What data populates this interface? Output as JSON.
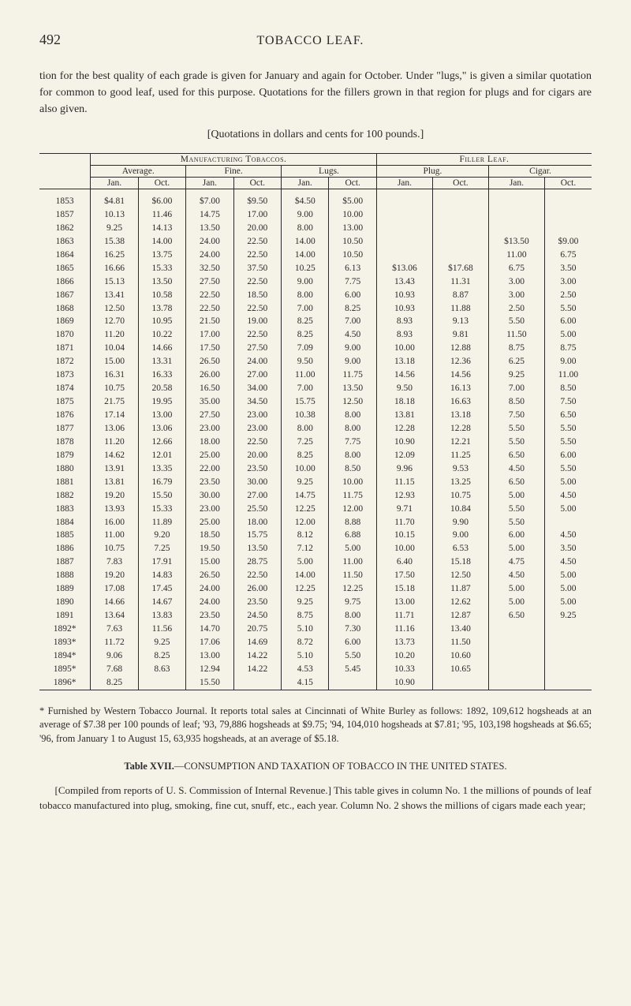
{
  "header": {
    "page_number": "492",
    "page_title": "TOBACCO LEAF."
  },
  "intro": "tion for the best quality of each grade is given for January and again for October. Under \"lugs,\" is given a similar quotation for common to good leaf, used for this purpose. Quotations for the fillers grown in that region for plugs and for cigars are also given.",
  "quotations_note": "[Quotations in dollars and cents for 100 pounds.]",
  "table": {
    "top_headers": {
      "mfg": "Manufacturing Tobaccos.",
      "filler": "Filler Leaf."
    },
    "sub_headers": {
      "average": "Average.",
      "fine": "Fine.",
      "lugs": "Lugs.",
      "plug": "Plug.",
      "cigar": "Cigar."
    },
    "month_headers": {
      "jan": "Jan.",
      "oct": "Oct."
    },
    "rows": [
      {
        "year": "1853",
        "avg_jan": "$4.81",
        "avg_oct": "$6.00",
        "fine_jan": "$7.00",
        "fine_oct": "$9.50",
        "lugs_jan": "$4.50",
        "lugs_oct": "$5.00",
        "plug_jan": "",
        "plug_oct": "",
        "cigar_jan": "",
        "cigar_oct": ""
      },
      {
        "year": "1857",
        "avg_jan": "10.13",
        "avg_oct": "11.46",
        "fine_jan": "14.75",
        "fine_oct": "17.00",
        "lugs_jan": "9.00",
        "lugs_oct": "10.00",
        "plug_jan": "",
        "plug_oct": "",
        "cigar_jan": "",
        "cigar_oct": ""
      },
      {
        "year": "1862",
        "avg_jan": "9.25",
        "avg_oct": "14.13",
        "fine_jan": "13.50",
        "fine_oct": "20.00",
        "lugs_jan": "8.00",
        "lugs_oct": "13.00",
        "plug_jan": "",
        "plug_oct": "",
        "cigar_jan": "",
        "cigar_oct": ""
      },
      {
        "year": "1863",
        "avg_jan": "15.38",
        "avg_oct": "14.00",
        "fine_jan": "24.00",
        "fine_oct": "22.50",
        "lugs_jan": "14.00",
        "lugs_oct": "10.50",
        "plug_jan": "",
        "plug_oct": "",
        "cigar_jan": "$13.50",
        "cigar_oct": "$9.00"
      },
      {
        "year": "1864",
        "avg_jan": "16.25",
        "avg_oct": "13.75",
        "fine_jan": "24.00",
        "fine_oct": "22.50",
        "lugs_jan": "14.00",
        "lugs_oct": "10.50",
        "plug_jan": "",
        "plug_oct": "",
        "cigar_jan": "11.00",
        "cigar_oct": "6.75"
      },
      {
        "year": "1865",
        "avg_jan": "16.66",
        "avg_oct": "15.33",
        "fine_jan": "32.50",
        "fine_oct": "37.50",
        "lugs_jan": "10.25",
        "lugs_oct": "6.13",
        "plug_jan": "$13.06",
        "plug_oct": "$17.68",
        "cigar_jan": "6.75",
        "cigar_oct": "3.50"
      },
      {
        "year": "1866",
        "avg_jan": "15.13",
        "avg_oct": "13.50",
        "fine_jan": "27.50",
        "fine_oct": "22.50",
        "lugs_jan": "9.00",
        "lugs_oct": "7.75",
        "plug_jan": "13.43",
        "plug_oct": "11.31",
        "cigar_jan": "3.00",
        "cigar_oct": "3.00"
      },
      {
        "year": "1867",
        "avg_jan": "13.41",
        "avg_oct": "10.58",
        "fine_jan": "22.50",
        "fine_oct": "18.50",
        "lugs_jan": "8.00",
        "lugs_oct": "6.00",
        "plug_jan": "10.93",
        "plug_oct": "8.87",
        "cigar_jan": "3.00",
        "cigar_oct": "2.50"
      },
      {
        "year": "1868",
        "avg_jan": "12.50",
        "avg_oct": "13.78",
        "fine_jan": "22.50",
        "fine_oct": "22.50",
        "lugs_jan": "7.00",
        "lugs_oct": "8.25",
        "plug_jan": "10.93",
        "plug_oct": "11.88",
        "cigar_jan": "2.50",
        "cigar_oct": "5.50"
      },
      {
        "year": "1869",
        "avg_jan": "12.70",
        "avg_oct": "10.95",
        "fine_jan": "21.50",
        "fine_oct": "19.00",
        "lugs_jan": "8.25",
        "lugs_oct": "7.00",
        "plug_jan": "8.93",
        "plug_oct": "9.13",
        "cigar_jan": "5.50",
        "cigar_oct": "6.00"
      },
      {
        "year": "1870",
        "avg_jan": "11.20",
        "avg_oct": "10.22",
        "fine_jan": "17.00",
        "fine_oct": "22.50",
        "lugs_jan": "8.25",
        "lugs_oct": "4.50",
        "plug_jan": "8.93",
        "plug_oct": "9.81",
        "cigar_jan": "11.50",
        "cigar_oct": "5.00"
      },
      {
        "year": "1871",
        "avg_jan": "10.04",
        "avg_oct": "14.66",
        "fine_jan": "17.50",
        "fine_oct": "27.50",
        "lugs_jan": "7.09",
        "lugs_oct": "9.00",
        "plug_jan": "10.00",
        "plug_oct": "12.88",
        "cigar_jan": "8.75",
        "cigar_oct": "8.75"
      },
      {
        "year": "1872",
        "avg_jan": "15.00",
        "avg_oct": "13.31",
        "fine_jan": "26.50",
        "fine_oct": "24.00",
        "lugs_jan": "9.50",
        "lugs_oct": "9.00",
        "plug_jan": "13.18",
        "plug_oct": "12.36",
        "cigar_jan": "6.25",
        "cigar_oct": "9.00"
      },
      {
        "year": "1873",
        "avg_jan": "16.31",
        "avg_oct": "16.33",
        "fine_jan": "26.00",
        "fine_oct": "27.00",
        "lugs_jan": "11.00",
        "lugs_oct": "11.75",
        "plug_jan": "14.56",
        "plug_oct": "14.56",
        "cigar_jan": "9.25",
        "cigar_oct": "11.00"
      },
      {
        "year": "1874",
        "avg_jan": "10.75",
        "avg_oct": "20.58",
        "fine_jan": "16.50",
        "fine_oct": "34.00",
        "lugs_jan": "7.00",
        "lugs_oct": "13.50",
        "plug_jan": "9.50",
        "plug_oct": "16.13",
        "cigar_jan": "7.00",
        "cigar_oct": "8.50"
      },
      {
        "year": "1875",
        "avg_jan": "21.75",
        "avg_oct": "19.95",
        "fine_jan": "35.00",
        "fine_oct": "34.50",
        "lugs_jan": "15.75",
        "lugs_oct": "12.50",
        "plug_jan": "18.18",
        "plug_oct": "16.63",
        "cigar_jan": "8.50",
        "cigar_oct": "7.50"
      },
      {
        "year": "1876",
        "avg_jan": "17.14",
        "avg_oct": "13.00",
        "fine_jan": "27.50",
        "fine_oct": "23.00",
        "lugs_jan": "10.38",
        "lugs_oct": "8.00",
        "plug_jan": "13.81",
        "plug_oct": "13.18",
        "cigar_jan": "7.50",
        "cigar_oct": "6.50"
      },
      {
        "year": "1877",
        "avg_jan": "13.06",
        "avg_oct": "13.06",
        "fine_jan": "23.00",
        "fine_oct": "23.00",
        "lugs_jan": "8.00",
        "lugs_oct": "8.00",
        "plug_jan": "12.28",
        "plug_oct": "12.28",
        "cigar_jan": "5.50",
        "cigar_oct": "5.50"
      },
      {
        "year": "1878",
        "avg_jan": "11.20",
        "avg_oct": "12.66",
        "fine_jan": "18.00",
        "fine_oct": "22.50",
        "lugs_jan": "7.25",
        "lugs_oct": "7.75",
        "plug_jan": "10.90",
        "plug_oct": "12.21",
        "cigar_jan": "5.50",
        "cigar_oct": "5.50"
      },
      {
        "year": "1879",
        "avg_jan": "14.62",
        "avg_oct": "12.01",
        "fine_jan": "25.00",
        "fine_oct": "20.00",
        "lugs_jan": "8.25",
        "lugs_oct": "8.00",
        "plug_jan": "12.09",
        "plug_oct": "11.25",
        "cigar_jan": "6.50",
        "cigar_oct": "6.00"
      },
      {
        "year": "1880",
        "avg_jan": "13.91",
        "avg_oct": "13.35",
        "fine_jan": "22.00",
        "fine_oct": "23.50",
        "lugs_jan": "10.00",
        "lugs_oct": "8.50",
        "plug_jan": "9.96",
        "plug_oct": "9.53",
        "cigar_jan": "4.50",
        "cigar_oct": "5.50"
      },
      {
        "year": "1881",
        "avg_jan": "13.81",
        "avg_oct": "16.79",
        "fine_jan": "23.50",
        "fine_oct": "30.00",
        "lugs_jan": "9.25",
        "lugs_oct": "10.00",
        "plug_jan": "11.15",
        "plug_oct": "13.25",
        "cigar_jan": "6.50",
        "cigar_oct": "5.00"
      },
      {
        "year": "1882",
        "avg_jan": "19.20",
        "avg_oct": "15.50",
        "fine_jan": "30.00",
        "fine_oct": "27.00",
        "lugs_jan": "14.75",
        "lugs_oct": "11.75",
        "plug_jan": "12.93",
        "plug_oct": "10.75",
        "cigar_jan": "5.00",
        "cigar_oct": "4.50"
      },
      {
        "year": "1883",
        "avg_jan": "13.93",
        "avg_oct": "15.33",
        "fine_jan": "23.00",
        "fine_oct": "25.50",
        "lugs_jan": "12.25",
        "lugs_oct": "12.00",
        "plug_jan": "9.71",
        "plug_oct": "10.84",
        "cigar_jan": "5.50",
        "cigar_oct": "5.00"
      },
      {
        "year": "1884",
        "avg_jan": "16.00",
        "avg_oct": "11.89",
        "fine_jan": "25.00",
        "fine_oct": "18.00",
        "lugs_jan": "12.00",
        "lugs_oct": "8.88",
        "plug_jan": "11.70",
        "plug_oct": "9.90",
        "cigar_jan": "5.50",
        "cigar_oct": ""
      },
      {
        "year": "1885",
        "avg_jan": "11.00",
        "avg_oct": "9.20",
        "fine_jan": "18.50",
        "fine_oct": "15.75",
        "lugs_jan": "8.12",
        "lugs_oct": "6.88",
        "plug_jan": "10.15",
        "plug_oct": "9.00",
        "cigar_jan": "6.00",
        "cigar_oct": "4.50"
      },
      {
        "year": "1886",
        "avg_jan": "10.75",
        "avg_oct": "7.25",
        "fine_jan": "19.50",
        "fine_oct": "13.50",
        "lugs_jan": "7.12",
        "lugs_oct": "5.00",
        "plug_jan": "10.00",
        "plug_oct": "6.53",
        "cigar_jan": "5.00",
        "cigar_oct": "3.50"
      },
      {
        "year": "1887",
        "avg_jan": "7.83",
        "avg_oct": "17.91",
        "fine_jan": "15.00",
        "fine_oct": "28.75",
        "lugs_jan": "5.00",
        "lugs_oct": "11.00",
        "plug_jan": "6.40",
        "plug_oct": "15.18",
        "cigar_jan": "4.75",
        "cigar_oct": "4.50"
      },
      {
        "year": "1888",
        "avg_jan": "19.20",
        "avg_oct": "14.83",
        "fine_jan": "26.50",
        "fine_oct": "22.50",
        "lugs_jan": "14.00",
        "lugs_oct": "11.50",
        "plug_jan": "17.50",
        "plug_oct": "12.50",
        "cigar_jan": "4.50",
        "cigar_oct": "5.00"
      },
      {
        "year": "1889",
        "avg_jan": "17.08",
        "avg_oct": "17.45",
        "fine_jan": "24.00",
        "fine_oct": "26.00",
        "lugs_jan": "12.25",
        "lugs_oct": "12.25",
        "plug_jan": "15.18",
        "plug_oct": "11.87",
        "cigar_jan": "5.00",
        "cigar_oct": "5.00"
      },
      {
        "year": "1890",
        "avg_jan": "14.66",
        "avg_oct": "14.67",
        "fine_jan": "24.00",
        "fine_oct": "23.50",
        "lugs_jan": "9.25",
        "lugs_oct": "9.75",
        "plug_jan": "13.00",
        "plug_oct": "12.62",
        "cigar_jan": "5.00",
        "cigar_oct": "5.00"
      },
      {
        "year": "1891",
        "avg_jan": "13.64",
        "avg_oct": "13.83",
        "fine_jan": "23.50",
        "fine_oct": "24.50",
        "lugs_jan": "8.75",
        "lugs_oct": "8.00",
        "plug_jan": "11.71",
        "plug_oct": "12.87",
        "cigar_jan": "6.50",
        "cigar_oct": "9.25"
      },
      {
        "year": "1892*",
        "avg_jan": "7.63",
        "avg_oct": "11.56",
        "fine_jan": "14.70",
        "fine_oct": "20.75",
        "lugs_jan": "5.10",
        "lugs_oct": "7.30",
        "plug_jan": "11.16",
        "plug_oct": "13.40",
        "cigar_jan": "",
        "cigar_oct": ""
      },
      {
        "year": "1893*",
        "avg_jan": "11.72",
        "avg_oct": "9.25",
        "fine_jan": "17.06",
        "fine_oct": "14.69",
        "lugs_jan": "8.72",
        "lugs_oct": "6.00",
        "plug_jan": "13.73",
        "plug_oct": "11.50",
        "cigar_jan": "",
        "cigar_oct": ""
      },
      {
        "year": "1894*",
        "avg_jan": "9.06",
        "avg_oct": "8.25",
        "fine_jan": "13.00",
        "fine_oct": "14.22",
        "lugs_jan": "5.10",
        "lugs_oct": "5.50",
        "plug_jan": "10.20",
        "plug_oct": "10.60",
        "cigar_jan": "",
        "cigar_oct": ""
      },
      {
        "year": "1895*",
        "avg_jan": "7.68",
        "avg_oct": "8.63",
        "fine_jan": "12.94",
        "fine_oct": "14.22",
        "lugs_jan": "4.53",
        "lugs_oct": "5.45",
        "plug_jan": "10.33",
        "plug_oct": "10.65",
        "cigar_jan": "",
        "cigar_oct": ""
      },
      {
        "year": "1896*",
        "avg_jan": "8.25",
        "avg_oct": "",
        "fine_jan": "15.50",
        "fine_oct": "",
        "lugs_jan": "4.15",
        "lugs_oct": "",
        "plug_jan": "10.90",
        "plug_oct": "",
        "cigar_jan": "",
        "cigar_oct": ""
      }
    ]
  },
  "footnote": "* Furnished by Western Tobacco Journal. It reports total sales at Cincinnati of White Burley as follows: 1892, 109,612 hogsheads at an average of $7.38 per 100 pounds of leaf; '93, 79,886 hogsheads at $9.75; '94, 104,010 hogsheads at $7.81; '95, 103,198 hogsheads at $6.65; '96, from January 1 to August 15, 63,935 hogsheads, at an average of $5.18.",
  "caption": {
    "prefix": "Table XVII.",
    "body": "—CONSUMPTION AND TAXATION OF TOBACCO IN THE UNITED STATES."
  },
  "final": "[Compiled from reports of U. S. Commission of Internal Revenue.] This table gives in column No. 1 the millions of pounds of leaf tobacco manufactured into plug, smoking, fine cut, snuff, etc., each year. Column No. 2 shows the millions of cigars made each year;"
}
